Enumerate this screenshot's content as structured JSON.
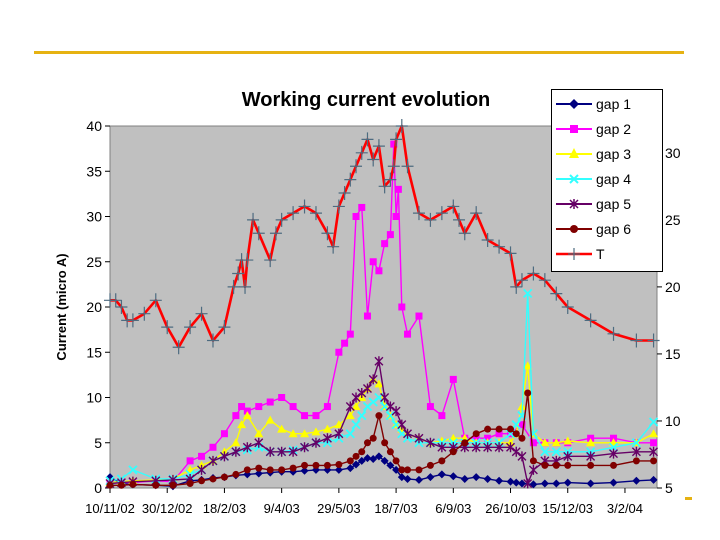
{
  "chart_data": {
    "type": "line",
    "title": "Working current evolution",
    "xlabel": "",
    "ylabel": "Current (micro A)",
    "y2label": "",
    "ylim": [
      0,
      40
    ],
    "y2lim": [
      5,
      32
    ],
    "yticks": [
      0,
      5,
      10,
      15,
      20,
      25,
      30,
      35,
      40
    ],
    "y2ticks": [
      5,
      10,
      15,
      20,
      25,
      30
    ],
    "xlim": [
      0,
      478
    ],
    "xtick_labels": [
      "10/11/02",
      "30/12/02",
      "18/2/03",
      "9/4/03",
      "29/5/03",
      "18/7/03",
      "6/9/03",
      "26/10/03",
      "15/12/03",
      "3/2/04"
    ],
    "xtick_days": [
      0,
      50,
      100,
      150,
      200,
      250,
      300,
      350,
      400,
      450
    ],
    "legend_position": "top-right",
    "grid": false,
    "series": [
      {
        "name": "gap 1",
        "axis": "left",
        "color": "#000080",
        "marker": "diamond",
        "x": [
          0,
          10,
          20,
          40,
          55,
          70,
          80,
          90,
          100,
          110,
          120,
          130,
          140,
          150,
          160,
          170,
          180,
          190,
          200,
          210,
          215,
          220,
          225,
          230,
          235,
          240,
          245,
          250,
          255,
          260,
          270,
          280,
          290,
          300,
          310,
          320,
          330,
          340,
          350,
          355,
          360,
          370,
          380,
          390,
          400,
          420,
          440,
          460,
          475
        ],
        "y": [
          1.2,
          0.5,
          0.4,
          0.3,
          0.2,
          0.8,
          0.9,
          1.1,
          1.2,
          1.4,
          1.5,
          1.6,
          1.7,
          1.8,
          1.8,
          1.9,
          2.0,
          2.0,
          2.0,
          2.2,
          2.6,
          3.0,
          3.3,
          3.2,
          3.5,
          3.0,
          2.5,
          2.0,
          1.2,
          1.0,
          0.9,
          1.2,
          1.5,
          1.3,
          1.0,
          1.2,
          1.0,
          0.8,
          0.7,
          0.6,
          0.5,
          0.4,
          0.5,
          0.5,
          0.6,
          0.5,
          0.6,
          0.8,
          0.9
        ]
      },
      {
        "name": "gap 2",
        "axis": "left",
        "color": "#ff00ff",
        "marker": "square",
        "x": [
          0,
          10,
          20,
          40,
          55,
          70,
          80,
          90,
          100,
          110,
          115,
          120,
          130,
          140,
          150,
          160,
          170,
          180,
          190,
          200,
          205,
          210,
          215,
          220,
          225,
          230,
          235,
          240,
          245,
          248,
          250,
          252,
          255,
          260,
          270,
          280,
          290,
          300,
          310,
          320,
          330,
          340,
          350,
          360,
          370,
          380,
          390,
          400,
          420,
          440,
          460,
          475
        ],
        "y": [
          0.5,
          0.6,
          0.6,
          0.8,
          0.7,
          3.0,
          3.5,
          4.5,
          6.0,
          8.0,
          9.0,
          8.5,
          9.0,
          9.5,
          10.0,
          9.0,
          8.0,
          8.0,
          9.0,
          15.0,
          16.0,
          17.0,
          30.0,
          31.0,
          19.0,
          25.0,
          24.0,
          27.0,
          28.0,
          38.0,
          30.0,
          33.0,
          20.0,
          17.0,
          19.0,
          9.0,
          8.0,
          12.0,
          5.5,
          5.5,
          5.5,
          6.0,
          6.0,
          7.0,
          5.0,
          5.0,
          5.0,
          5.0,
          5.5,
          5.5,
          5.0,
          5.0
        ]
      },
      {
        "name": "gap 3",
        "axis": "left",
        "color": "#ffff00",
        "marker": "triangle",
        "x": [
          0,
          10,
          20,
          40,
          55,
          70,
          80,
          90,
          100,
          110,
          115,
          120,
          130,
          140,
          150,
          160,
          170,
          180,
          190,
          200,
          210,
          215,
          220,
          225,
          230,
          235,
          240,
          245,
          250,
          255,
          260,
          270,
          280,
          290,
          300,
          310,
          320,
          330,
          340,
          350,
          355,
          360,
          365,
          370,
          380,
          390,
          400,
          420,
          440,
          460,
          475
        ],
        "y": [
          0.6,
          0.7,
          0.8,
          0.9,
          1.0,
          2.0,
          2.5,
          3.0,
          4.0,
          5.0,
          7.0,
          8.0,
          6.0,
          7.5,
          6.5,
          6.0,
          6.0,
          6.2,
          6.5,
          7.0,
          8.0,
          9.0,
          10.0,
          11.0,
          12.0,
          11.5,
          9.0,
          8.0,
          7.0,
          6.5,
          6.0,
          5.5,
          5.0,
          5.2,
          5.5,
          5.5,
          5.0,
          5.0,
          5.0,
          5.0,
          6.0,
          9.0,
          13.5,
          6.0,
          5.0,
          5.0,
          5.2,
          5.0,
          5.0,
          5.0,
          6.0
        ]
      },
      {
        "name": "gap 4",
        "axis": "left",
        "color": "#33ffff",
        "marker": "cross",
        "x": [
          0,
          10,
          20,
          40,
          55,
          70,
          80,
          90,
          100,
          110,
          120,
          130,
          140,
          150,
          160,
          170,
          180,
          190,
          200,
          210,
          215,
          220,
          225,
          230,
          235,
          240,
          245,
          250,
          255,
          260,
          270,
          280,
          290,
          300,
          310,
          320,
          330,
          340,
          350,
          355,
          360,
          365,
          370,
          380,
          390,
          400,
          420,
          440,
          460,
          475
        ],
        "y": [
          0.8,
          1.0,
          2.0,
          1.0,
          1.0,
          1.5,
          2.0,
          3.0,
          3.5,
          4.0,
          4.2,
          4.5,
          4.0,
          4.0,
          4.2,
          4.5,
          5.0,
          5.0,
          5.5,
          6.0,
          7.0,
          8.0,
          9.0,
          9.5,
          10.0,
          9.0,
          8.0,
          7.0,
          6.0,
          5.5,
          5.0,
          5.0,
          5.0,
          5.0,
          5.0,
          5.0,
          5.0,
          5.0,
          6.0,
          7.0,
          8.0,
          21.5,
          6.0,
          4.0,
          4.0,
          4.0,
          4.0,
          4.5,
          5.0,
          7.3
        ]
      },
      {
        "name": "gap 5",
        "axis": "left",
        "color": "#660066",
        "marker": "asterisk",
        "x": [
          0,
          10,
          20,
          40,
          55,
          70,
          80,
          90,
          100,
          110,
          120,
          130,
          140,
          150,
          160,
          170,
          180,
          190,
          200,
          210,
          215,
          220,
          225,
          230,
          235,
          240,
          245,
          250,
          255,
          260,
          270,
          280,
          290,
          300,
          310,
          320,
          330,
          340,
          350,
          355,
          360,
          365,
          370,
          380,
          390,
          400,
          420,
          440,
          460,
          475
        ],
        "y": [
          0.5,
          0.6,
          0.7,
          0.8,
          0.9,
          1.0,
          2.0,
          3.0,
          3.5,
          4.0,
          4.5,
          5.0,
          4.0,
          4.0,
          4.0,
          4.5,
          5.0,
          5.5,
          6.0,
          9.0,
          10.0,
          10.5,
          11.0,
          12.0,
          14.0,
          10.0,
          9.0,
          8.5,
          7.0,
          6.0,
          5.5,
          5.0,
          4.5,
          4.5,
          4.5,
          4.5,
          4.5,
          4.5,
          4.5,
          4.0,
          3.5,
          0.5,
          2.0,
          3.0,
          3.0,
          3.5,
          3.5,
          3.8,
          4.0,
          4.0
        ]
      },
      {
        "name": "gap 6",
        "axis": "left",
        "color": "#800000",
        "marker": "circle",
        "x": [
          0,
          10,
          20,
          40,
          55,
          70,
          80,
          90,
          100,
          110,
          120,
          130,
          140,
          150,
          160,
          170,
          180,
          190,
          200,
          210,
          215,
          220,
          225,
          230,
          235,
          240,
          245,
          250,
          255,
          260,
          270,
          280,
          290,
          300,
          310,
          320,
          330,
          340,
          350,
          355,
          360,
          365,
          370,
          380,
          390,
          400,
          420,
          440,
          460,
          475
        ],
        "y": [
          0.3,
          0.3,
          0.4,
          0.3,
          0.3,
          0.5,
          0.8,
          1.0,
          1.2,
          1.5,
          2.0,
          2.2,
          2.0,
          2.0,
          2.2,
          2.5,
          2.5,
          2.5,
          2.6,
          3.0,
          3.5,
          4.0,
          5.0,
          5.5,
          8.0,
          5.0,
          4.0,
          3.0,
          2.0,
          2.0,
          2.0,
          2.5,
          3.0,
          4.0,
          5.0,
          6.0,
          6.5,
          6.5,
          6.5,
          6.0,
          5.5,
          10.5,
          3.0,
          2.5,
          2.5,
          2.5,
          2.5,
          2.5,
          3.0,
          3.0
        ]
      },
      {
        "name": "T",
        "axis": "right",
        "color": "#ff0000",
        "marker": "plus",
        "x": [
          0,
          5,
          10,
          15,
          20,
          30,
          40,
          50,
          60,
          70,
          80,
          90,
          100,
          108,
          112,
          115,
          118,
          120,
          125,
          130,
          140,
          145,
          150,
          160,
          170,
          180,
          190,
          195,
          200,
          205,
          210,
          215,
          220,
          225,
          230,
          235,
          240,
          245,
          248,
          250,
          255,
          260,
          270,
          280,
          290,
          300,
          305,
          310,
          320,
          330,
          340,
          350,
          355,
          360,
          370,
          380,
          390,
          400,
          420,
          440,
          460,
          475
        ],
        "y": [
          19.0,
          19.0,
          18.5,
          17.5,
          17.5,
          18.0,
          19.0,
          17.0,
          15.5,
          17.0,
          18.0,
          16.0,
          17.0,
          20.0,
          21.0,
          22.0,
          20.0,
          22.0,
          25.0,
          24.0,
          22.0,
          24.0,
          25.0,
          25.5,
          26.0,
          25.5,
          24.0,
          23.0,
          26.0,
          27.0,
          28.0,
          29.0,
          30.0,
          31.0,
          29.5,
          30.5,
          27.5,
          28.0,
          29.0,
          31.0,
          32.0,
          29.0,
          25.5,
          25.0,
          25.5,
          26.0,
          25.0,
          24.0,
          25.5,
          23.5,
          23.0,
          22.5,
          20.0,
          20.5,
          21.0,
          20.5,
          19.5,
          18.5,
          17.5,
          16.5,
          16.0,
          16.0
        ]
      }
    ]
  }
}
